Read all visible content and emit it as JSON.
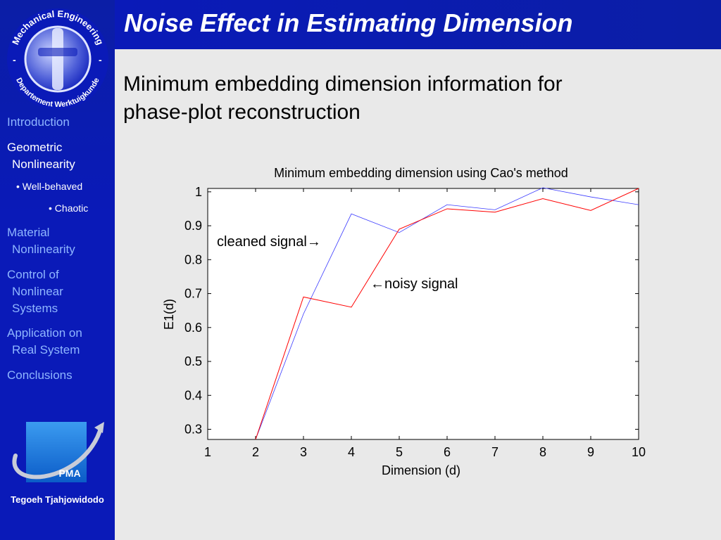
{
  "title": "Noise Effect in Estimating Dimension",
  "heading_line1": "Minimum embedding dimension information for",
  "heading_line2": "phase-plot reconstruction",
  "logo": {
    "arc_top": "Mechanical Engineering",
    "arc_bottom": "Departement Werktuigkunde",
    "dash_left": "-",
    "dash_right": "-"
  },
  "nav": {
    "introduction": "Introduction",
    "geometric_1": "Geometric",
    "geometric_2": "Nonlinearity",
    "well_behaved": "• Well-behaved",
    "chaotic": "• Chaotic",
    "material_1": "Material",
    "material_2": "Nonlinearity",
    "control_1": "Control of",
    "control_2": "Nonlinear",
    "control_3": "Systems",
    "application_1": "Application on",
    "application_2": "Real System",
    "conclusions": "Conclusions"
  },
  "pma_label": "PMA",
  "author": "Tegoeh Tjahjowidodo",
  "colors": {
    "noisy": "#ff0000",
    "cleaned": "#3a3aff",
    "sidebar": "#0a1ab8"
  },
  "chart_data": {
    "type": "line",
    "title": "Minimum embedding dimension using Cao's method",
    "xlabel": "Dimension (d)",
    "ylabel": "E1(d)",
    "xlim": [
      1,
      10
    ],
    "ylim": [
      0.27,
      1.01
    ],
    "xticks": [
      1,
      2,
      3,
      4,
      5,
      6,
      7,
      8,
      9,
      10
    ],
    "yticks": [
      0.3,
      0.4,
      0.5,
      0.6,
      0.7,
      0.8,
      0.9,
      1
    ],
    "x": [
      1,
      2,
      3,
      4,
      5,
      6,
      7,
      8,
      9,
      10
    ],
    "series": [
      {
        "name": "cleaned signal",
        "color": "#3a3aff",
        "values": [
          null,
          0.27,
          0.64,
          0.935,
          0.88,
          0.962,
          0.947,
          1.012,
          0.985,
          0.962
        ]
      },
      {
        "name": "noisy signal",
        "color": "#ff0000",
        "values": [
          null,
          0.27,
          0.69,
          0.66,
          0.89,
          0.95,
          0.94,
          0.98,
          0.945,
          1.01
        ]
      }
    ],
    "annotations": [
      {
        "text": "cleaned signal→",
        "target": "cleaned"
      },
      {
        "text": "←noisy signal",
        "target": "noisy"
      }
    ],
    "grid": false
  }
}
